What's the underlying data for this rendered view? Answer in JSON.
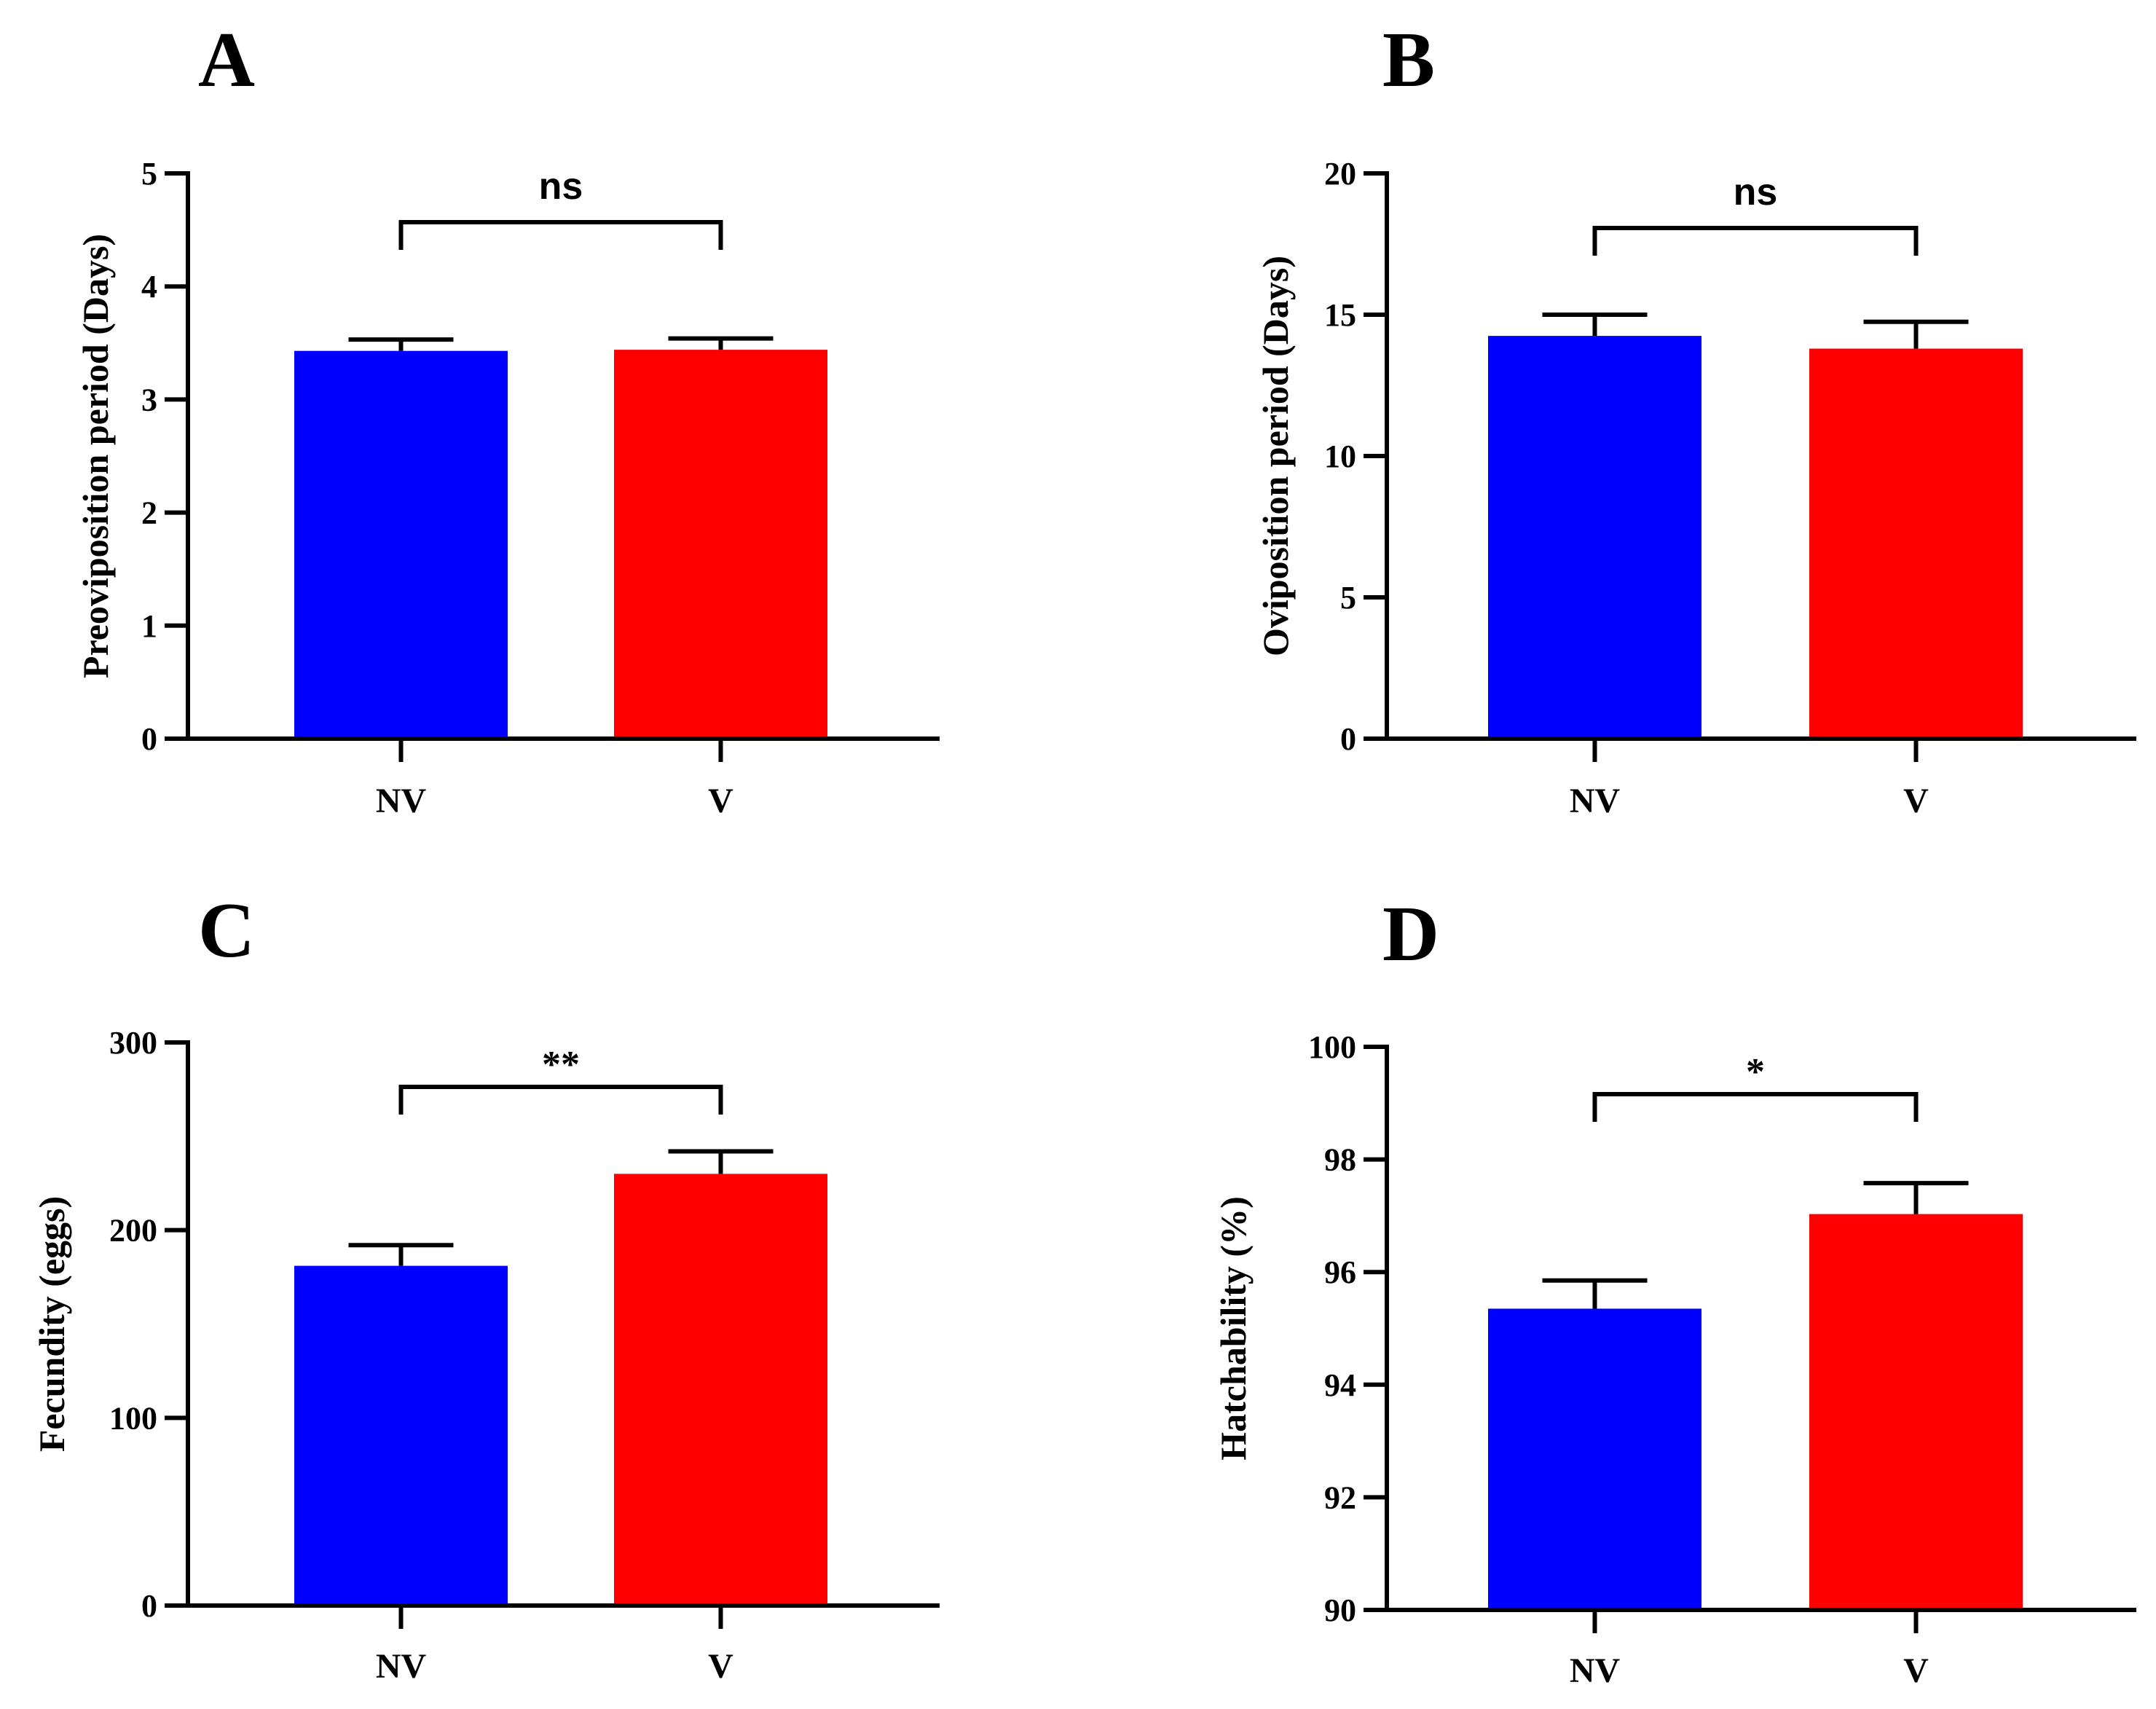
{
  "chart_data": [
    {
      "panel": "A",
      "type": "bar",
      "categories": [
        "NV",
        "V"
      ],
      "values": [
        3.43,
        3.44
      ],
      "errors": [
        0.1,
        0.1
      ],
      "colors": [
        "#0000ff",
        "#ff0000"
      ],
      "ylabel": "Preoviposition period (Days)",
      "ylim": [
        0,
        5
      ],
      "yticks": [
        0,
        1,
        2,
        3,
        4,
        5
      ],
      "significance": "ns"
    },
    {
      "panel": "B",
      "type": "bar",
      "categories": [
        "NV",
        "V"
      ],
      "values": [
        14.25,
        13.8
      ],
      "errors": [
        0.75,
        0.95
      ],
      "colors": [
        "#0000ff",
        "#ff0000"
      ],
      "ylabel": "Oviposition period (Days)",
      "ylim": [
        0,
        20
      ],
      "yticks": [
        0,
        5,
        10,
        15,
        20
      ],
      "significance": "ns"
    },
    {
      "panel": "C",
      "type": "bar",
      "categories": [
        "NV",
        "V"
      ],
      "values": [
        181,
        230
      ],
      "errors": [
        11,
        12
      ],
      "colors": [
        "#0000ff",
        "#ff0000"
      ],
      "ylabel": "Fecundity (eggs)",
      "ylim": [
        0,
        300
      ],
      "yticks": [
        0,
        100,
        200,
        300
      ],
      "significance": "**"
    },
    {
      "panel": "D",
      "type": "bar",
      "categories": [
        "NV",
        "V"
      ],
      "values": [
        95.35,
        97.03
      ],
      "errors": [
        0.5,
        0.55
      ],
      "colors": [
        "#0000ff",
        "#ff0000"
      ],
      "ylabel": "Hatchability (%)",
      "ylim": [
        90,
        100
      ],
      "yticks": [
        90,
        92,
        94,
        96,
        98,
        100
      ],
      "significance": "*"
    }
  ]
}
